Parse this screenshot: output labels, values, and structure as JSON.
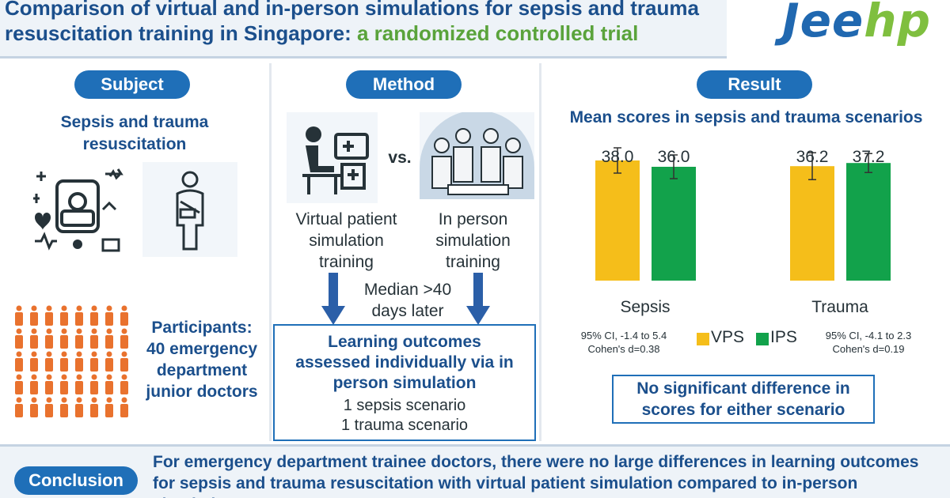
{
  "header": {
    "title_line1": "Comparison of virtual and in-person simulations for sepsis and trauma",
    "title_line2_main": "resuscitation training in Singapore: ",
    "title_line2_green": "a randomized controlled trial",
    "logo_part1": "Jee",
    "logo_part2": "hp"
  },
  "subject": {
    "label": "Subject",
    "topic_line1": "Sepsis and trauma",
    "topic_line2": "resuscitation",
    "participants_line1": "Participants:",
    "participants_line2": "40 emergency",
    "participants_line3": "department",
    "participants_line4": "junior doctors",
    "icons": [
      "medical-collage-icon",
      "injured-person-icon",
      "people-grid-icon"
    ]
  },
  "method": {
    "label": "Method",
    "vs": "vs.",
    "virtual_line1": "Virtual patient",
    "virtual_line2": "simulation",
    "virtual_line3": "training",
    "inperson_line1": "In person",
    "inperson_line2": "simulation",
    "inperson_line3": "training",
    "median_line1": "Median >40",
    "median_line2": "days later",
    "outcome_line1": "Learning outcomes",
    "outcome_line2": "assessed individually via in",
    "outcome_line3": "person simulation",
    "scenario1": "1 sepsis scenario",
    "scenario2": "1 trauma scenario",
    "icons": [
      "computer-user-icon",
      "medical-team-icon",
      "down-arrow-icon"
    ]
  },
  "result": {
    "label": "Result",
    "nsd_line1": "No significant difference in",
    "nsd_line2": "scores for either scenario",
    "sepsis_ci": "95% CI, -1.4 to 5.4",
    "sepsis_d": "Cohen's d=0.38",
    "trauma_ci": "95% CI, -4.1 to 2.3",
    "trauma_d": "Cohen's d=0.19"
  },
  "chart_data": {
    "type": "bar",
    "title": "Mean scores in sepsis and trauma scenarios",
    "categories": [
      "Sepsis",
      "Trauma"
    ],
    "series": [
      {
        "name": "VPS",
        "values": [
          38.0,
          36.2
        ],
        "color": "#f5be1a"
      },
      {
        "name": "IPS",
        "values": [
          36.0,
          37.2
        ],
        "color": "#12a24b"
      }
    ],
    "value_labels": [
      [
        "38.0",
        "36.2"
      ],
      [
        "36.0",
        "37.2"
      ]
    ],
    "error_bars": true,
    "legend": "between-categories",
    "grid": false,
    "axes_visible": false
  },
  "conclusion": {
    "label": "Conclusion",
    "text": "For emergency department trainee doctors, there were no large differences in learning outcomes for sepsis and trauma resuscitation with virtual patient simulation compared to in-person simulation."
  }
}
